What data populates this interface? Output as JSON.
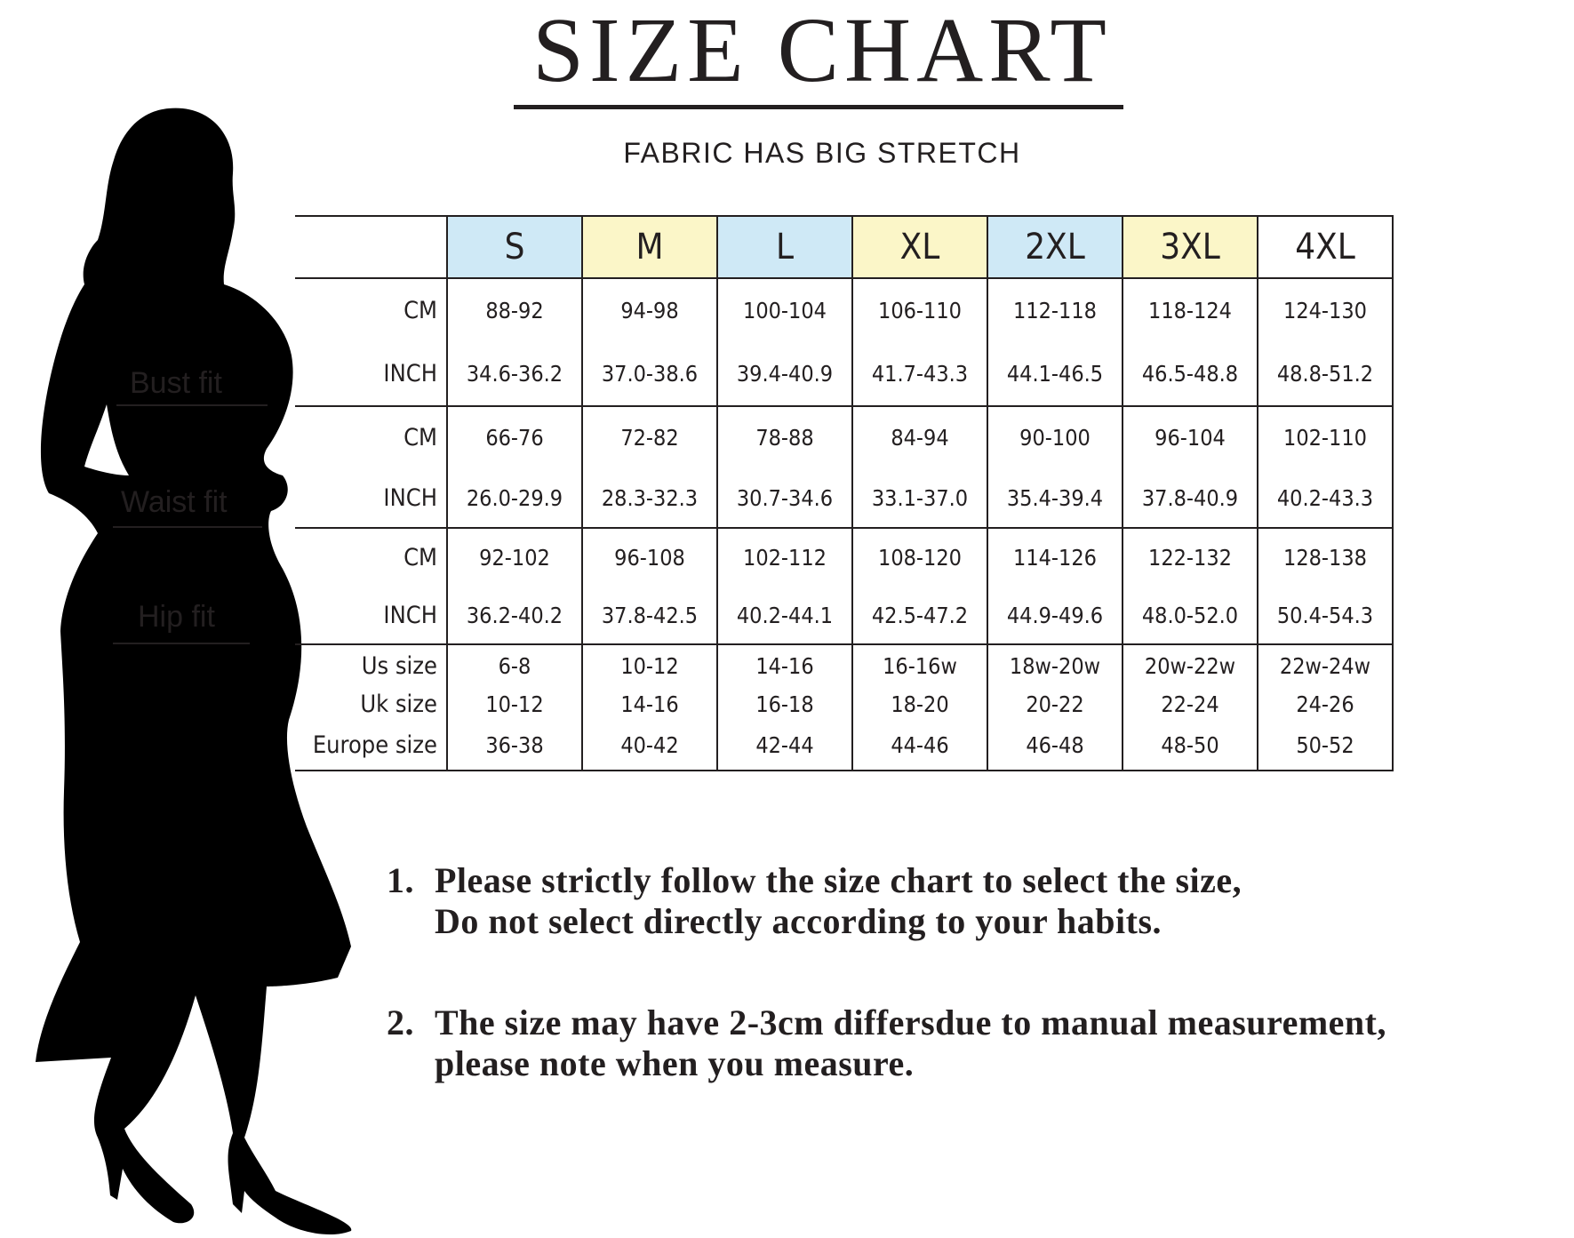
{
  "title": "SIZE CHART",
  "subtitle": "FABRIC HAS BIG STRETCH",
  "fit_labels": {
    "bust": "Bust fit",
    "waist": "Waist fit",
    "hip": "Hip fit"
  },
  "colors": {
    "blue": "#cfe9f6",
    "yellow": "#fbf6c8",
    "ink": "#231f20"
  },
  "table": {
    "sizes": [
      "S",
      "M",
      "L",
      "XL",
      "2XL",
      "3XL",
      "4XL"
    ],
    "bust": {
      "cm_label": "CM",
      "inch_label": "INCH",
      "cm": [
        "88-92",
        "94-98",
        "100-104",
        "106-110",
        "112-118",
        "118-124",
        "124-130"
      ],
      "inch": [
        "34.6-36.2",
        "37.0-38.6",
        "39.4-40.9",
        "41.7-43.3",
        "44.1-46.5",
        "46.5-48.8",
        "48.8-51.2"
      ]
    },
    "waist": {
      "cm_label": "CM",
      "inch_label": "INCH",
      "cm": [
        "66-76",
        "72-82",
        "78-88",
        "84-94",
        "90-100",
        "96-104",
        "102-110"
      ],
      "inch": [
        "26.0-29.9",
        "28.3-32.3",
        "30.7-34.6",
        "33.1-37.0",
        "35.4-39.4",
        "37.8-40.9",
        "40.2-43.3"
      ]
    },
    "hip": {
      "cm_label": "CM",
      "inch_label": "INCH",
      "cm": [
        "92-102",
        "96-108",
        "102-112",
        "108-120",
        "114-126",
        "122-132",
        "128-138"
      ],
      "inch": [
        "36.2-40.2",
        "37.8-42.5",
        "40.2-44.1",
        "42.5-47.2",
        "44.9-49.6",
        "48.0-52.0",
        "50.4-54.3"
      ]
    },
    "conversion": {
      "us_label": "Us size",
      "uk_label": "Uk size",
      "eu_label": "Europe size",
      "us": [
        "6-8",
        "10-12",
        "14-16",
        "16-16w",
        "18w-20w",
        "20w-22w",
        "22w-24w"
      ],
      "uk": [
        "10-12",
        "14-16",
        "16-18",
        "18-20",
        "20-22",
        "22-24",
        "24-26"
      ],
      "eu": [
        "36-38",
        "40-42",
        "42-44",
        "44-46",
        "46-48",
        "48-50",
        "50-52"
      ]
    }
  },
  "notes": [
    {
      "number": "1.",
      "line1": "Please strictly follow the size chart to select the size,",
      "line2": "Do not select directly according to your habits."
    },
    {
      "number": "2.",
      "line1": "The size may have 2-3cm differsdue to manual measurement,",
      "line2": "please note when you measure."
    }
  ]
}
